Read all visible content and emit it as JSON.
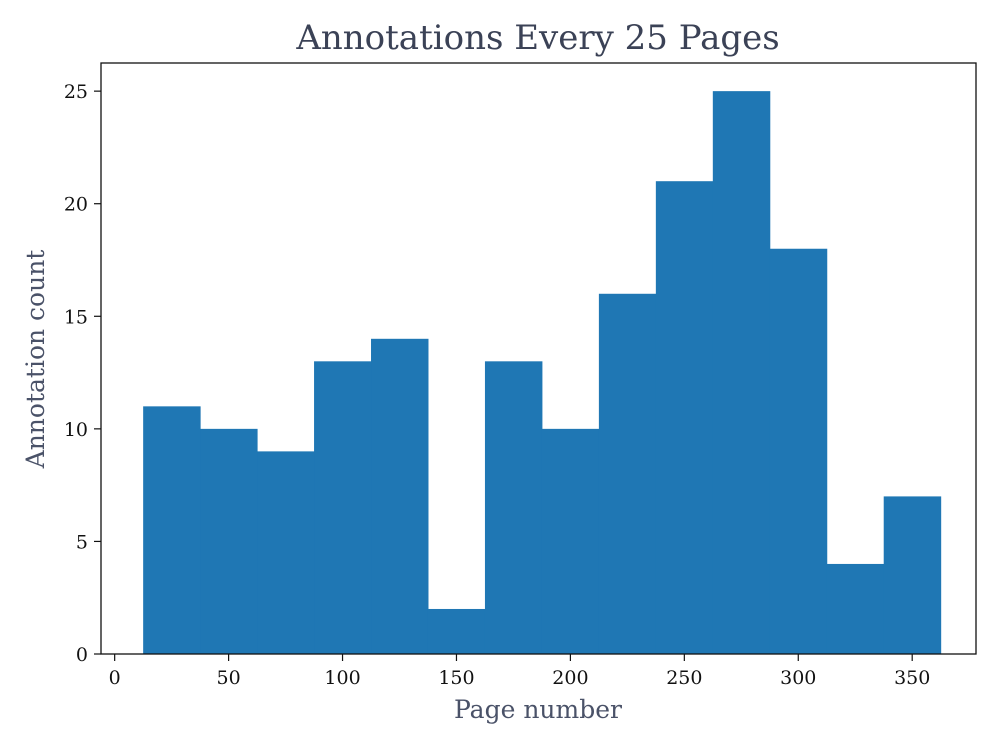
{
  "chart_data": {
    "type": "bar",
    "title": "Annotations Every 25 Pages",
    "xlabel": "Page number",
    "ylabel": "Annotation count",
    "bin_width": 25,
    "bins": [
      {
        "start": 12.5,
        "end": 37.5,
        "count": 11
      },
      {
        "start": 37.5,
        "end": 62.5,
        "count": 10
      },
      {
        "start": 62.5,
        "end": 87.5,
        "count": 9
      },
      {
        "start": 87.5,
        "end": 112.5,
        "count": 13
      },
      {
        "start": 112.5,
        "end": 137.5,
        "count": 14
      },
      {
        "start": 137.5,
        "end": 162.5,
        "count": 2
      },
      {
        "start": 162.5,
        "end": 187.5,
        "count": 13
      },
      {
        "start": 187.5,
        "end": 212.5,
        "count": 10
      },
      {
        "start": 212.5,
        "end": 237.5,
        "count": 16
      },
      {
        "start": 237.5,
        "end": 262.5,
        "count": 21
      },
      {
        "start": 262.5,
        "end": 287.5,
        "count": 25
      },
      {
        "start": 287.5,
        "end": 312.5,
        "count": 18
      },
      {
        "start": 312.5,
        "end": 337.5,
        "count": 4
      },
      {
        "start": 337.5,
        "end": 362.5,
        "count": 7
      }
    ],
    "xlim": [
      -6,
      378
    ],
    "ylim": [
      0,
      26.25
    ],
    "xticks": [
      0,
      50,
      100,
      150,
      200,
      250,
      300,
      350
    ],
    "yticks": [
      0,
      5,
      10,
      15,
      20,
      25
    ],
    "grid": false,
    "colors": {
      "bar": "#1f77b4",
      "title": "#3b4256",
      "axis_label": "#4a5268"
    }
  }
}
